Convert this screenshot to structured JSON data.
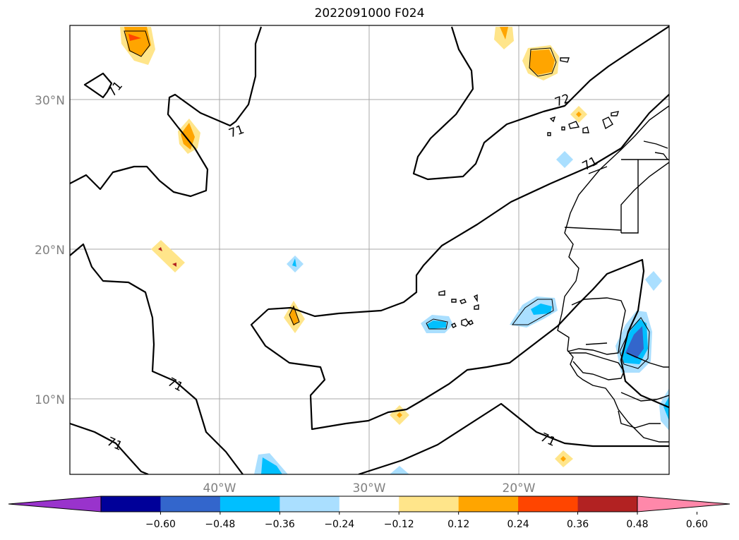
{
  "title": "2022091000 F024",
  "map": {
    "lat_labels": [
      "30°N",
      "20°N",
      "10°N"
    ],
    "lon_labels": [
      "40°W",
      "30°W",
      "20°W"
    ],
    "contour_labels": [
      "71",
      "71",
      "71",
      "71",
      "72",
      "71",
      "71"
    ]
  },
  "colorbar": {
    "colors": [
      "#9933cc",
      "#000099",
      "#3366cc",
      "#00bfff",
      "#aadfff",
      "#ffffff",
      "#ffe58a",
      "#ffa500",
      "#ff4500",
      "#b22222",
      "#ff88aa"
    ],
    "tick_labels": [
      "−0.60",
      "−0.48",
      "−0.36",
      "−0.24",
      "−0.12",
      "0.12",
      "0.24",
      "0.36",
      "0.48",
      "0.60"
    ]
  }
}
